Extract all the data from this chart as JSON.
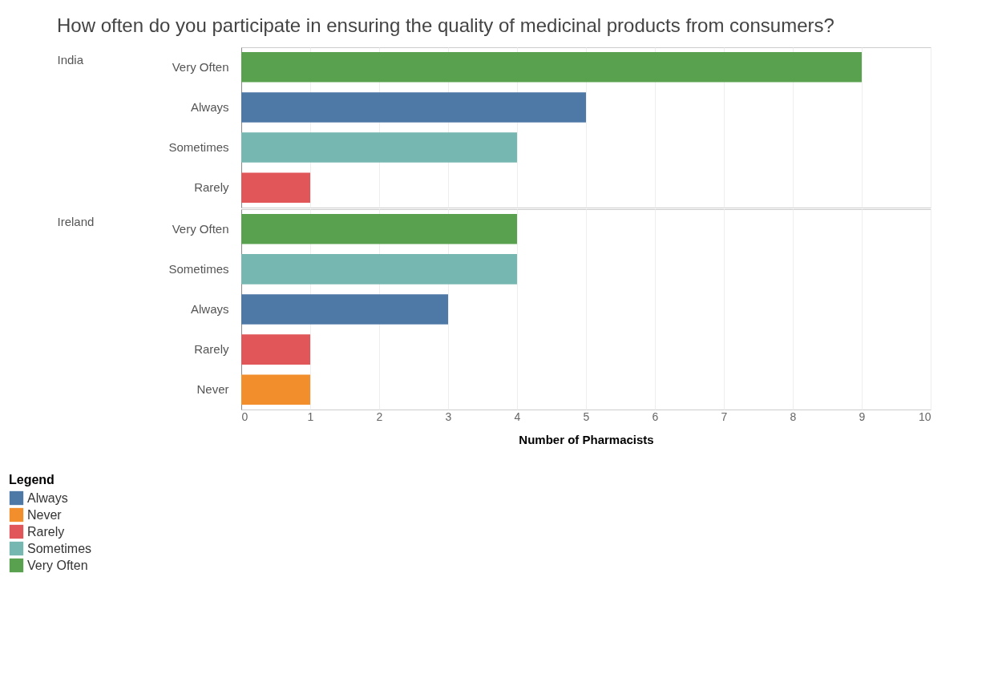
{
  "chart_data": [
    {
      "type": "bar",
      "orientation": "horizontal",
      "title": "How often do you participate in ensuring the quality of medicinal products from consumers?",
      "ylabel": "India",
      "categories": [
        "Very Often",
        "Always",
        "Sometimes",
        "Rarely"
      ],
      "values": [
        9,
        5,
        4,
        1
      ],
      "colors": [
        "#59a14f",
        "#4e79a7",
        "#76b7b2",
        "#e15759"
      ],
      "xlim": [
        0,
        10
      ],
      "xticks": [
        0,
        1,
        2,
        3,
        4,
        5,
        6,
        7,
        8,
        9,
        10
      ],
      "grid": "x",
      "tick_labels": "y"
    },
    {
      "type": "bar",
      "orientation": "horizontal",
      "ylabel": "Ireland",
      "xlabel": "Number of Pharmacists",
      "legend_title": "Legend",
      "categories": [
        "Very Often",
        "Sometimes",
        "Always",
        "Rarely",
        "Never"
      ],
      "series": [
        {
          "name": "Always",
          "color": "#4e79a7",
          "values": [
            null,
            null,
            3,
            null,
            null
          ]
        },
        {
          "name": "Never",
          "color": "#f28e2b",
          "values": [
            null,
            null,
            null,
            null,
            1
          ]
        },
        {
          "name": "Rarely",
          "color": "#e15759",
          "values": [
            null,
            null,
            null,
            1,
            null
          ]
        },
        {
          "name": "Sometimes",
          "color": "#76b7b2",
          "values": [
            null,
            4,
            null,
            null,
            null
          ]
        },
        {
          "name": "Very Often",
          "color": "#59a14f",
          "values": [
            4,
            null,
            null,
            null,
            null
          ]
        }
      ],
      "xlim": [
        0,
        10
      ],
      "xticks": [
        0,
        1,
        2,
        3,
        4,
        5,
        6,
        7,
        8,
        9,
        10
      ],
      "grid": "x",
      "legend": "bottom left"
    }
  ]
}
